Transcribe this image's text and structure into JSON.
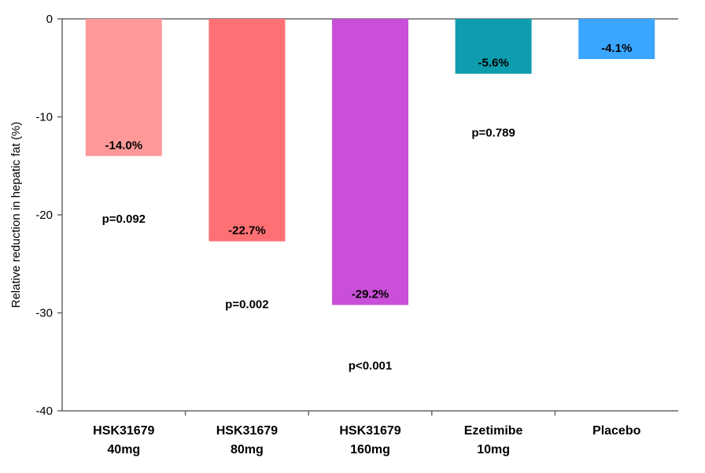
{
  "chart_data": {
    "type": "bar",
    "title": "",
    "xlabel": "",
    "ylabel": "Relative reduction in hepatic fat (%)",
    "ylim": [
      -40,
      0
    ],
    "yticks": [
      0,
      -10,
      -20,
      -30,
      -40
    ],
    "grid": false,
    "legend": "none",
    "categories": [
      [
        "HSK31679",
        "40mg"
      ],
      [
        "HSK31679",
        "80mg"
      ],
      [
        "HSK31679",
        "160mg"
      ],
      [
        "Ezetimibe",
        "10mg"
      ],
      [
        "Placebo"
      ]
    ],
    "values": [
      -14.0,
      -22.7,
      -29.2,
      -5.6,
      -4.1
    ],
    "value_labels": [
      "-14.0%",
      "-22.7%",
      "-29.2%",
      "-5.6%",
      "-4.1%"
    ],
    "bar_colors": [
      "#FF9999",
      "#FF7075",
      "#C94FD8",
      "#0E9DAE",
      "#3AA6FF"
    ],
    "annotations": [
      {
        "category_index": 0,
        "text": "p=0.092",
        "y": -20.8
      },
      {
        "category_index": 1,
        "text": "p=0.002",
        "y": -29.5
      },
      {
        "category_index": 2,
        "text": "p<0.001",
        "y": -35.8
      },
      {
        "category_index": 3,
        "text": "p=0.789",
        "y": -12.0
      }
    ]
  }
}
